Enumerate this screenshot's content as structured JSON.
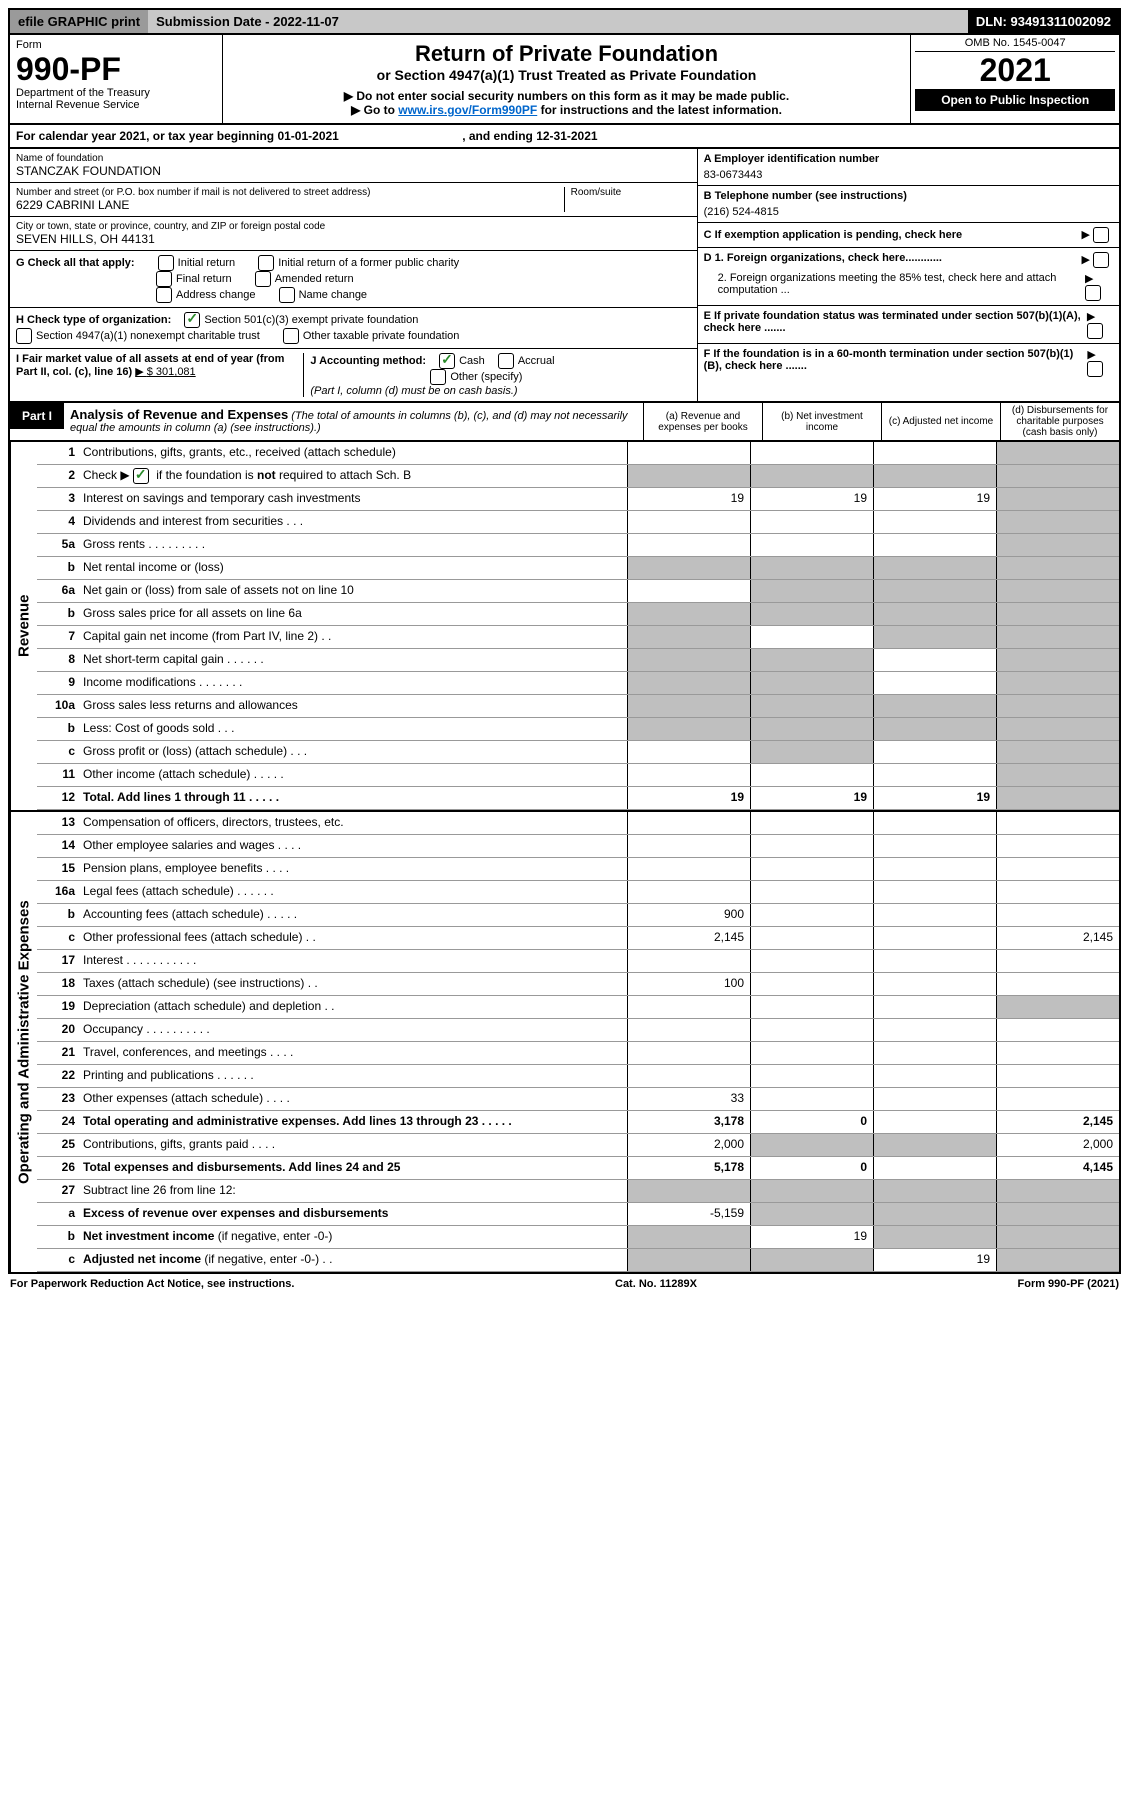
{
  "topbar": {
    "efile": "efile GRAPHIC print",
    "subdate": "Submission Date - 2022-11-07",
    "dln": "DLN: 93491311002092"
  },
  "header": {
    "form_word": "Form",
    "form_num": "990-PF",
    "dept": "Department of the Treasury",
    "irs": "Internal Revenue Service",
    "title": "Return of Private Foundation",
    "subtitle": "or Section 4947(a)(1) Trust Treated as Private Foundation",
    "note1": "▶ Do not enter social security numbers on this form as it may be made public.",
    "note2_pre": "▶ Go to ",
    "note2_link": "www.irs.gov/Form990PF",
    "note2_post": " for instructions and the latest information.",
    "omb": "OMB No. 1545-0047",
    "year": "2021",
    "open": "Open to Public Inspection"
  },
  "calendar": {
    "text_pre": "For calendar year 2021, or tax year beginning ",
    "begin": "01-01-2021",
    "text_mid": " , and ending ",
    "end": "12-31-2021"
  },
  "foundation": {
    "name_lbl": "Name of foundation",
    "name": "STANCZAK FOUNDATION",
    "addr_lbl": "Number and street (or P.O. box number if mail is not delivered to street address)",
    "addr": "6229 CABRINI LANE",
    "room_lbl": "Room/suite",
    "city_lbl": "City or town, state or province, country, and ZIP or foreign postal code",
    "city": "SEVEN HILLS, OH  44131"
  },
  "right_info": {
    "a_lbl": "A Employer identification number",
    "a_val": "83-0673443",
    "b_lbl": "B Telephone number (see instructions)",
    "b_val": "(216) 524-4815",
    "c_lbl": "C If exemption application is pending, check here",
    "d1_lbl": "D 1. Foreign organizations, check here............",
    "d2_lbl": "2. Foreign organizations meeting the 85% test, check here and attach computation ...",
    "e_lbl": "E  If private foundation status was terminated under section 507(b)(1)(A), check here .......",
    "f_lbl": "F  If the foundation is in a 60-month termination under section 507(b)(1)(B), check here ......."
  },
  "g_section": {
    "g_lbl": "G Check all that apply:",
    "opts": [
      "Initial return",
      "Initial return of a former public charity",
      "Final return",
      "Amended return",
      "Address change",
      "Name change"
    ],
    "h_lbl": "H Check type of organization:",
    "h1": "Section 501(c)(3) exempt private foundation",
    "h2": "Section 4947(a)(1) nonexempt charitable trust",
    "h3": "Other taxable private foundation",
    "i_lbl": "I Fair market value of all assets at end of year (from Part II, col. (c), line 16)",
    "i_val": "$  301,081",
    "j_lbl": "J Accounting method:",
    "j1": "Cash",
    "j2": "Accrual",
    "j3": "Other (specify)",
    "j_note": "(Part I, column (d) must be on cash basis.)"
  },
  "part1": {
    "label": "Part I",
    "title": "Analysis of Revenue and Expenses",
    "subtitle": "(The total of amounts in columns (b), (c), and (d) may not necessarily equal the amounts in column (a) (see instructions).)",
    "cols": {
      "a": "(a) Revenue and expenses per books",
      "b": "(b) Net investment income",
      "c": "(c) Adjusted net income",
      "d": "(d) Disbursements for charitable purposes (cash basis only)"
    }
  },
  "side_labels": {
    "rev": "Revenue",
    "exp": "Operating and Administrative Expenses"
  },
  "rows": [
    {
      "n": "1",
      "d": "",
      "a": "",
      "b": "",
      "c": "",
      "shade": [
        "d"
      ]
    },
    {
      "n": "2",
      "d": "",
      "a": "",
      "b": "",
      "c": "",
      "shade": [
        "a",
        "b",
        "c",
        "d"
      ],
      "bold_not": true
    },
    {
      "n": "3",
      "d": "",
      "a": "19",
      "b": "19",
      "c": "19",
      "shade": [
        "d"
      ]
    },
    {
      "n": "4",
      "d": "",
      "a": "",
      "b": "",
      "c": "",
      "shade": [
        "d"
      ]
    },
    {
      "n": "5a",
      "d": "",
      "a": "",
      "b": "",
      "c": "",
      "shade": [
        "d"
      ]
    },
    {
      "n": "b",
      "d": "",
      "a": "",
      "b": "",
      "c": "",
      "shade": [
        "a",
        "b",
        "c",
        "d"
      ]
    },
    {
      "n": "6a",
      "d": "",
      "a": "",
      "b": "",
      "c": "",
      "shade": [
        "b",
        "c",
        "d"
      ]
    },
    {
      "n": "b",
      "d": "",
      "a": "",
      "b": "",
      "c": "",
      "shade": [
        "a",
        "b",
        "c",
        "d"
      ]
    },
    {
      "n": "7",
      "d": "",
      "a": "",
      "b": "",
      "c": "",
      "shade": [
        "a",
        "c",
        "d"
      ]
    },
    {
      "n": "8",
      "d": "",
      "a": "",
      "b": "",
      "c": "",
      "shade": [
        "a",
        "b",
        "d"
      ]
    },
    {
      "n": "9",
      "d": "",
      "a": "",
      "b": "",
      "c": "",
      "shade": [
        "a",
        "b",
        "d"
      ]
    },
    {
      "n": "10a",
      "d": "",
      "a": "",
      "b": "",
      "c": "",
      "shade": [
        "a",
        "b",
        "c",
        "d"
      ]
    },
    {
      "n": "b",
      "d": "",
      "a": "",
      "b": "",
      "c": "",
      "shade": [
        "a",
        "b",
        "c",
        "d"
      ]
    },
    {
      "n": "c",
      "d": "",
      "a": "",
      "b": "",
      "c": "",
      "shade": [
        "b",
        "d"
      ]
    },
    {
      "n": "11",
      "d": "",
      "a": "",
      "b": "",
      "c": "",
      "shade": [
        "d"
      ]
    },
    {
      "n": "12",
      "d": "",
      "a": "19",
      "b": "19",
      "c": "19",
      "shade": [
        "d"
      ],
      "bold": true
    }
  ],
  "exp_rows": [
    {
      "n": "13",
      "d": "",
      "a": "",
      "b": "",
      "c": ""
    },
    {
      "n": "14",
      "d": "",
      "a": "",
      "b": "",
      "c": ""
    },
    {
      "n": "15",
      "d": "",
      "a": "",
      "b": "",
      "c": ""
    },
    {
      "n": "16a",
      "d": "",
      "a": "",
      "b": "",
      "c": ""
    },
    {
      "n": "b",
      "d": "",
      "a": "900",
      "b": "",
      "c": ""
    },
    {
      "n": "c",
      "d": "2,145",
      "a": "2,145",
      "b": "",
      "c": ""
    },
    {
      "n": "17",
      "d": "",
      "a": "",
      "b": "",
      "c": ""
    },
    {
      "n": "18",
      "d": "",
      "a": "100",
      "b": "",
      "c": ""
    },
    {
      "n": "19",
      "d": "",
      "a": "",
      "b": "",
      "c": "",
      "shade": [
        "d"
      ]
    },
    {
      "n": "20",
      "d": "",
      "a": "",
      "b": "",
      "c": ""
    },
    {
      "n": "21",
      "d": "",
      "a": "",
      "b": "",
      "c": ""
    },
    {
      "n": "22",
      "d": "",
      "a": "",
      "b": "",
      "c": ""
    },
    {
      "n": "23",
      "d": "",
      "a": "33",
      "b": "",
      "c": ""
    },
    {
      "n": "24",
      "d": "2,145",
      "a": "3,178",
      "b": "0",
      "c": "",
      "bold": true
    },
    {
      "n": "25",
      "d": "2,000",
      "a": "2,000",
      "b": "",
      "c": "",
      "shade": [
        "b",
        "c"
      ]
    },
    {
      "n": "26",
      "d": "4,145",
      "a": "5,178",
      "b": "0",
      "c": "",
      "bold": true
    },
    {
      "n": "27",
      "d": "",
      "a": "",
      "b": "",
      "c": "",
      "shade": [
        "a",
        "b",
        "c",
        "d"
      ]
    },
    {
      "n": "a",
      "d": "",
      "a": "-5,159",
      "b": "",
      "c": "",
      "shade": [
        "b",
        "c",
        "d"
      ],
      "bold": true
    },
    {
      "n": "b",
      "d": "",
      "a": "",
      "b": "19",
      "c": "",
      "shade": [
        "a",
        "c",
        "d"
      ],
      "bold": true
    },
    {
      "n": "c",
      "d": "",
      "a": "",
      "b": "",
      "c": "19",
      "shade": [
        "a",
        "b",
        "d"
      ],
      "bold": true
    }
  ],
  "footer": {
    "left": "For Paperwork Reduction Act Notice, see instructions.",
    "mid": "Cat. No. 11289X",
    "right": "Form 990-PF (2021)"
  }
}
